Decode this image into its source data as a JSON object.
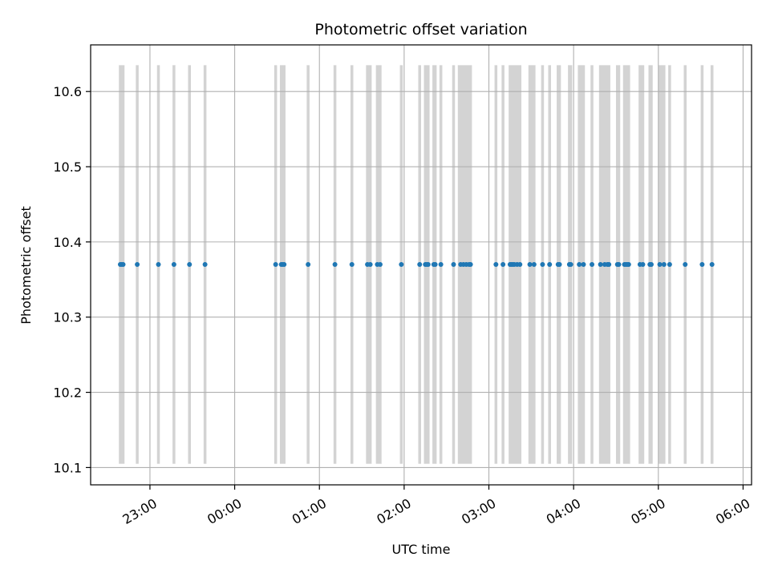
{
  "chart_data": {
    "type": "scatter",
    "title": "Photometric offset variation",
    "xlabel": "UTC time",
    "ylabel": "Photometric offset",
    "x_ticks": [
      "23:00",
      "00:00",
      "01:00",
      "02:00",
      "03:00",
      "04:00",
      "05:00",
      "06:00"
    ],
    "y_ticks": [
      "10.1",
      "10.2",
      "10.3",
      "10.4",
      "10.5",
      "10.6"
    ],
    "xlim": [
      "22:18",
      "06:06"
    ],
    "ylim": [
      10.077,
      10.662
    ],
    "grid": true,
    "exposure_band": [
      10.105,
      10.635
    ],
    "exposure_color": "#d3d3d3",
    "marker_color": "#1f77b4",
    "series": [
      {
        "values": [
          {
            "x": "22:39",
            "y": 10.37
          },
          {
            "x": "22:40",
            "y": 10.37
          },
          {
            "x": "22:41",
            "y": 10.37
          },
          {
            "x": "22:51",
            "y": 10.37
          },
          {
            "x": "23:06",
            "y": 10.37
          },
          {
            "x": "23:17",
            "y": 10.37
          },
          {
            "x": "23:28",
            "y": 10.37
          },
          {
            "x": "23:39",
            "y": 10.37
          },
          {
            "x": "00:29",
            "y": 10.37
          },
          {
            "x": "00:33",
            "y": 10.37
          },
          {
            "x": "00:34",
            "y": 10.37
          },
          {
            "x": "00:35",
            "y": 10.37
          },
          {
            "x": "00:52",
            "y": 10.37
          },
          {
            "x": "01:11",
            "y": 10.37
          },
          {
            "x": "01:23",
            "y": 10.37
          },
          {
            "x": "01:34",
            "y": 10.37
          },
          {
            "x": "01:36",
            "y": 10.37
          },
          {
            "x": "01:41",
            "y": 10.37
          },
          {
            "x": "01:43",
            "y": 10.37
          },
          {
            "x": "01:58",
            "y": 10.37
          },
          {
            "x": "02:11",
            "y": 10.37
          },
          {
            "x": "02:15",
            "y": 10.37
          },
          {
            "x": "02:16",
            "y": 10.37
          },
          {
            "x": "02:17",
            "y": 10.37
          },
          {
            "x": "02:21",
            "y": 10.37
          },
          {
            "x": "02:22",
            "y": 10.37
          },
          {
            "x": "02:26",
            "y": 10.37
          },
          {
            "x": "02:35",
            "y": 10.37
          },
          {
            "x": "02:40",
            "y": 10.37
          },
          {
            "x": "02:42",
            "y": 10.37
          },
          {
            "x": "02:44",
            "y": 10.37
          },
          {
            "x": "02:46",
            "y": 10.37
          },
          {
            "x": "02:47",
            "y": 10.37
          },
          {
            "x": "03:05",
            "y": 10.37
          },
          {
            "x": "03:10",
            "y": 10.37
          },
          {
            "x": "03:15",
            "y": 10.37
          },
          {
            "x": "03:16",
            "y": 10.37
          },
          {
            "x": "03:17",
            "y": 10.37
          },
          {
            "x": "03:18",
            "y": 10.37
          },
          {
            "x": "03:20",
            "y": 10.37
          },
          {
            "x": "03:22",
            "y": 10.37
          },
          {
            "x": "03:29",
            "y": 10.37
          },
          {
            "x": "03:32",
            "y": 10.37
          },
          {
            "x": "03:38",
            "y": 10.37
          },
          {
            "x": "03:43",
            "y": 10.37
          },
          {
            "x": "03:49",
            "y": 10.37
          },
          {
            "x": "03:50",
            "y": 10.37
          },
          {
            "x": "03:57",
            "y": 10.37
          },
          {
            "x": "03:58",
            "y": 10.37
          },
          {
            "x": "04:04",
            "y": 10.37
          },
          {
            "x": "04:07",
            "y": 10.37
          },
          {
            "x": "04:13",
            "y": 10.37
          },
          {
            "x": "04:19",
            "y": 10.37
          },
          {
            "x": "04:22",
            "y": 10.37
          },
          {
            "x": "04:24",
            "y": 10.37
          },
          {
            "x": "04:25",
            "y": 10.37
          },
          {
            "x": "04:31",
            "y": 10.37
          },
          {
            "x": "04:32",
            "y": 10.37
          },
          {
            "x": "04:36",
            "y": 10.37
          },
          {
            "x": "04:37",
            "y": 10.37
          },
          {
            "x": "04:38",
            "y": 10.37
          },
          {
            "x": "04:39",
            "y": 10.37
          },
          {
            "x": "04:47",
            "y": 10.37
          },
          {
            "x": "04:49",
            "y": 10.37
          },
          {
            "x": "04:54",
            "y": 10.37
          },
          {
            "x": "04:55",
            "y": 10.37
          },
          {
            "x": "05:01",
            "y": 10.37
          },
          {
            "x": "05:04",
            "y": 10.37
          },
          {
            "x": "05:08",
            "y": 10.37
          },
          {
            "x": "05:19",
            "y": 10.37
          },
          {
            "x": "05:31",
            "y": 10.37
          },
          {
            "x": "05:38",
            "y": 10.37
          }
        ]
      }
    ],
    "exposure_spans": [
      [
        "22:38",
        "22:42"
      ],
      [
        "22:50",
        "22:52"
      ],
      [
        "23:05",
        "23:07"
      ],
      [
        "23:16",
        "23:18"
      ],
      [
        "23:27",
        "23:29"
      ],
      [
        "23:38",
        "23:40"
      ],
      [
        "00:28",
        "00:30"
      ],
      [
        "00:32",
        "00:36"
      ],
      [
        "00:51",
        "00:53"
      ],
      [
        "01:10",
        "01:12"
      ],
      [
        "01:22",
        "01:24"
      ],
      [
        "01:33",
        "01:37"
      ],
      [
        "01:40",
        "01:44"
      ],
      [
        "01:57",
        "01:59"
      ],
      [
        "02:10",
        "02:12"
      ],
      [
        "02:14",
        "02:18"
      ],
      [
        "02:20",
        "02:23"
      ],
      [
        "02:25",
        "02:27"
      ],
      [
        "02:34",
        "02:36"
      ],
      [
        "02:38",
        "02:48"
      ],
      [
        "03:04",
        "03:06"
      ],
      [
        "03:09",
        "03:11"
      ],
      [
        "03:14",
        "03:23"
      ],
      [
        "03:28",
        "03:33"
      ],
      [
        "03:37",
        "03:39"
      ],
      [
        "03:42",
        "03:44"
      ],
      [
        "03:48",
        "03:51"
      ],
      [
        "03:56",
        "03:59"
      ],
      [
        "04:03",
        "04:08"
      ],
      [
        "04:12",
        "04:14"
      ],
      [
        "04:18",
        "04:26"
      ],
      [
        "04:30",
        "04:33"
      ],
      [
        "04:35",
        "04:40"
      ],
      [
        "04:46",
        "04:50"
      ],
      [
        "04:53",
        "04:56"
      ],
      [
        "05:00",
        "05:05"
      ],
      [
        "05:07",
        "05:09"
      ],
      [
        "05:18",
        "05:20"
      ],
      [
        "05:30",
        "05:32"
      ],
      [
        "05:37",
        "05:39"
      ]
    ]
  }
}
